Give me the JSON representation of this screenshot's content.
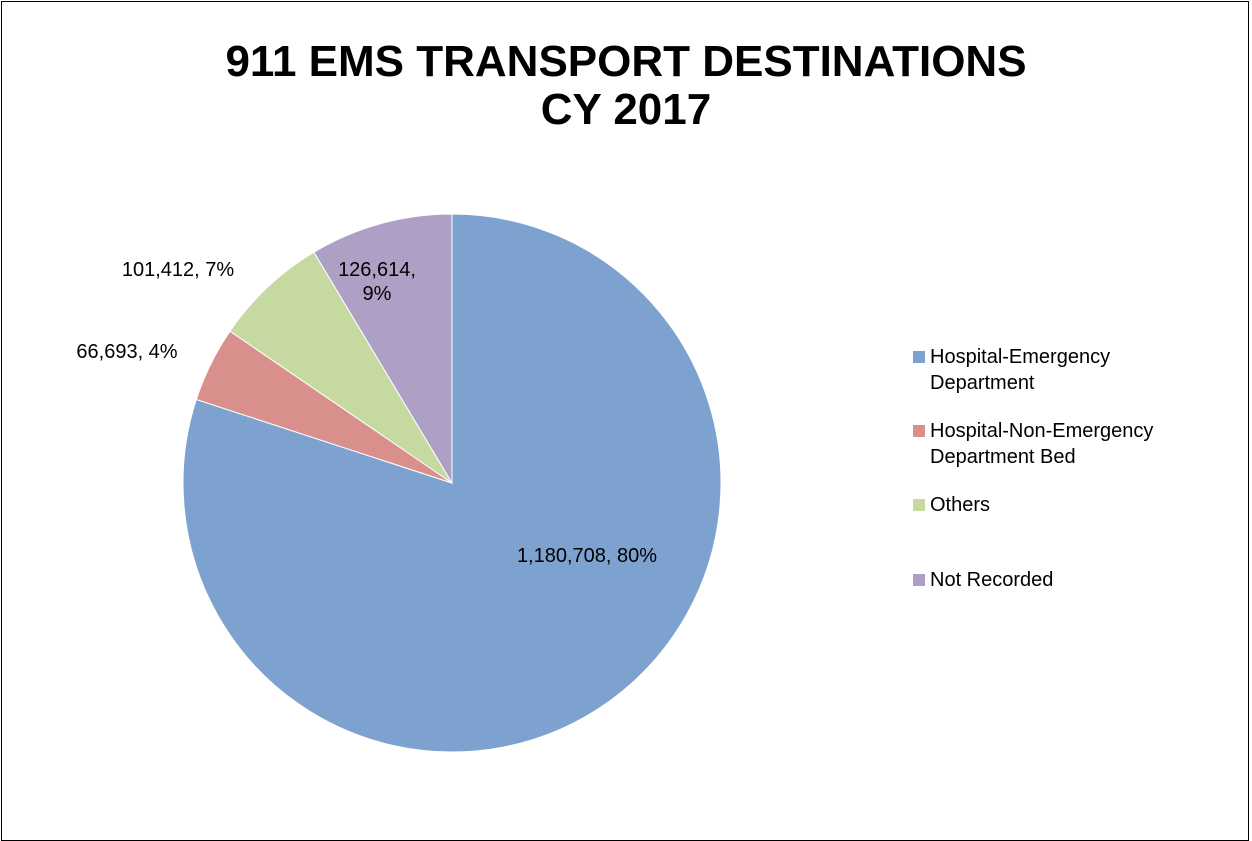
{
  "chart_data": {
    "type": "pie",
    "title": [
      "911 EMS TRANSPORT DESTINATIONS",
      "CY 2017"
    ],
    "categories": [
      "Hospital-Emergency Department",
      "Hospital-Non-Emergency Department Bed",
      "Others",
      "Not Recorded"
    ],
    "values": [
      1180708,
      66693,
      101412,
      126614
    ],
    "value_labels": [
      "1,180,708, 80%",
      "66,693, 4%",
      "101,412, 7%",
      "126,614, 9%"
    ],
    "colors": [
      "#7ea2cf",
      "#d9908c",
      "#c6d9a0",
      "#ae9fc5"
    ],
    "legend": "right"
  }
}
